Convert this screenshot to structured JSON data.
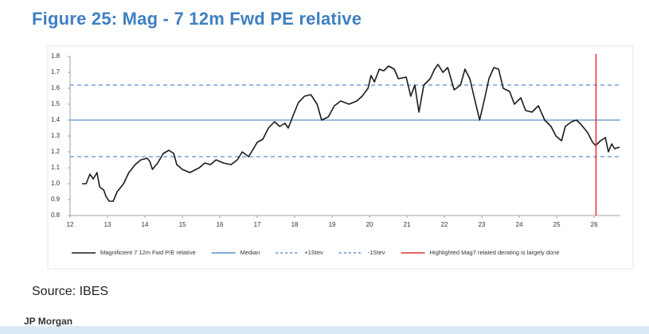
{
  "title": "Figure 25: Mag - 7 12m Fwd PE relative",
  "source": "Source: IBES",
  "footer": "JP Morgan",
  "chart_data": {
    "type": "line",
    "xlim": [
      12,
      26.7
    ],
    "xticks": [
      12,
      13,
      14,
      15,
      16,
      17,
      18,
      19,
      20,
      21,
      22,
      23,
      24,
      25,
      26
    ],
    "ylim": [
      0.8,
      1.8
    ],
    "yticks": [
      0.8,
      0.9,
      {
        "value": 1,
        "label": "1.0"
      },
      1.1,
      1.2,
      1.3,
      1.4,
      1.5,
      1.6,
      1.7,
      1.8
    ],
    "series": [
      {
        "name": "Magnificient 7 12m Fwd P/E relative",
        "color": "#1a1a1a",
        "x": [
          12.32,
          12.43,
          12.53,
          12.62,
          12.72,
          12.79,
          12.9,
          12.96,
          13.04,
          13.15,
          13.26,
          13.43,
          13.57,
          13.74,
          13.89,
          14.06,
          14.13,
          14.2,
          14.34,
          14.49,
          14.64,
          14.77,
          14.85,
          15.0,
          15.2,
          15.45,
          15.6,
          15.75,
          15.9,
          16.1,
          16.3,
          16.47,
          16.6,
          16.77,
          16.9,
          17.0,
          17.15,
          17.3,
          17.46,
          17.6,
          17.74,
          17.83,
          17.96,
          18.1,
          18.26,
          18.43,
          18.6,
          18.72,
          18.9,
          19.06,
          19.23,
          19.45,
          19.66,
          19.8,
          19.96,
          20.04,
          20.13,
          20.26,
          20.38,
          20.51,
          20.66,
          20.77,
          20.98,
          21.1,
          21.21,
          21.32,
          21.45,
          21.62,
          21.74,
          21.83,
          21.96,
          22.09,
          22.26,
          22.43,
          22.55,
          22.68,
          22.81,
          22.94,
          23.06,
          23.19,
          23.32,
          23.45,
          23.57,
          23.74,
          23.87,
          24.04,
          24.17,
          24.34,
          24.51,
          24.68,
          24.85,
          24.98,
          25.13,
          25.23,
          25.4,
          25.53,
          25.66,
          25.83,
          25.96,
          26.04,
          26.17,
          26.3,
          26.38,
          26.47,
          26.55,
          26.68
        ],
        "values": [
          1.0,
          1.0,
          1.06,
          1.03,
          1.07,
          0.98,
          0.96,
          0.92,
          0.89,
          0.89,
          0.95,
          1.0,
          1.07,
          1.12,
          1.15,
          1.16,
          1.14,
          1.09,
          1.13,
          1.19,
          1.21,
          1.19,
          1.12,
          1.09,
          1.07,
          1.1,
          1.13,
          1.12,
          1.15,
          1.13,
          1.12,
          1.15,
          1.2,
          1.17,
          1.22,
          1.26,
          1.28,
          1.35,
          1.39,
          1.36,
          1.38,
          1.35,
          1.43,
          1.51,
          1.55,
          1.56,
          1.5,
          1.4,
          1.42,
          1.49,
          1.52,
          1.5,
          1.52,
          1.55,
          1.6,
          1.68,
          1.64,
          1.72,
          1.71,
          1.74,
          1.72,
          1.66,
          1.67,
          1.55,
          1.62,
          1.45,
          1.62,
          1.66,
          1.72,
          1.75,
          1.7,
          1.73,
          1.59,
          1.62,
          1.72,
          1.66,
          1.53,
          1.4,
          1.52,
          1.66,
          1.73,
          1.72,
          1.6,
          1.58,
          1.5,
          1.54,
          1.46,
          1.45,
          1.49,
          1.4,
          1.36,
          1.3,
          1.27,
          1.36,
          1.39,
          1.4,
          1.37,
          1.32,
          1.26,
          1.24,
          1.27,
          1.29,
          1.2,
          1.25,
          1.22,
          1.23
        ]
      }
    ],
    "reference_lines": [
      {
        "name": "Median",
        "value": 1.4,
        "color": "#5b8fc9",
        "style": "solid"
      },
      {
        "name": "+1Stev",
        "value": 1.62,
        "color": "#5b8fc9",
        "style": "dashed"
      },
      {
        "name": "-1Stev",
        "value": 1.17,
        "color": "#5b8fc9",
        "style": "dashed"
      }
    ],
    "vertical_lines": [
      {
        "name": "Highlighted Mag7 related derating is largely done",
        "x": 26.05,
        "color": "#e03030"
      }
    ]
  }
}
